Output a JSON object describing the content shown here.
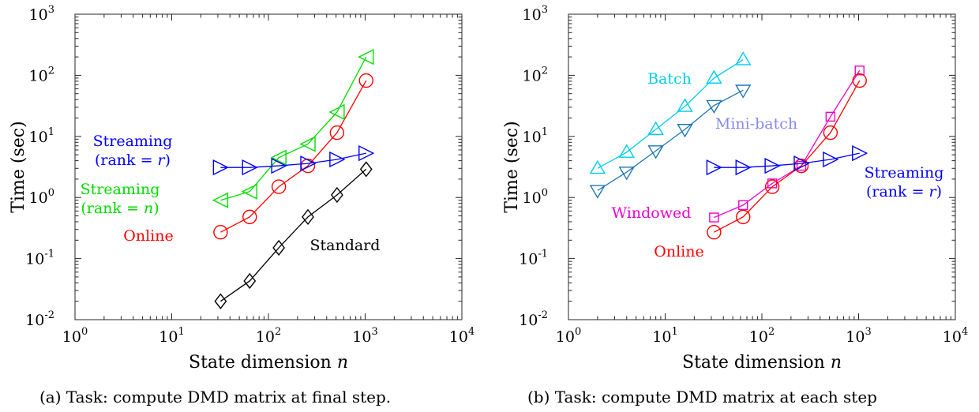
{
  "chart_data": [
    {
      "type": "line",
      "caption": "(a) Task: compute DMD matrix at final step.",
      "xlabel": "State dimension n",
      "ylabel": "Time (sec)",
      "xscale": "log",
      "yscale": "log",
      "xlim": [
        1,
        10000
      ],
      "ylim": [
        0.01,
        1000
      ],
      "xticks": [
        {
          "base": "10",
          "exp": "0"
        },
        {
          "base": "10",
          "exp": "1"
        },
        {
          "base": "10",
          "exp": "2"
        },
        {
          "base": "10",
          "exp": "3"
        },
        {
          "base": "10",
          "exp": "4"
        }
      ],
      "yticks": [
        {
          "base": "10",
          "exp": "-2"
        },
        {
          "base": "10",
          "exp": "-1"
        },
        {
          "base": "10",
          "exp": "0"
        },
        {
          "base": "10",
          "exp": "1"
        },
        {
          "base": "10",
          "exp": "2"
        },
        {
          "base": "10",
          "exp": "3"
        }
      ],
      "series": [
        {
          "name": "Standard",
          "color": "#000000",
          "marker": "diamond",
          "x": [
            32,
            64,
            128,
            256,
            512,
            1024
          ],
          "y": [
            0.02,
            0.043,
            0.15,
            0.48,
            1.1,
            2.9
          ]
        },
        {
          "name": "Online",
          "color": "#ff0000",
          "marker": "circle",
          "x": [
            32,
            64,
            128,
            256,
            512,
            1024
          ],
          "y": [
            0.27,
            0.48,
            1.5,
            3.3,
            11.5,
            82
          ]
        },
        {
          "name": "Streaming (rank = n)",
          "color": "#00dd00",
          "marker": "triangle-left",
          "x": [
            32,
            64,
            128,
            256,
            512,
            1024
          ],
          "y": [
            0.9,
            1.25,
            4.5,
            7.5,
            25,
            200
          ]
        },
        {
          "name": "Streaming (rank = r)",
          "color": "#0000ff",
          "marker": "triangle-right",
          "x": [
            32,
            64,
            128,
            256,
            512,
            1024
          ],
          "y": [
            3.1,
            3.1,
            3.3,
            3.6,
            4.2,
            5.3
          ]
        }
      ],
      "annotations": [
        {
          "lines": [
            "Streaming",
            "(rank = r)"
          ],
          "color": "#0000ff"
        },
        {
          "lines": [
            "Streaming",
            "(rank = n)"
          ],
          "color": "#00dd00"
        },
        {
          "lines": [
            "Online"
          ],
          "color": "#ff0000"
        },
        {
          "lines": [
            "Standard"
          ],
          "color": "#000000"
        }
      ]
    },
    {
      "type": "line",
      "caption": "(b) Task: compute DMD matrix at each step",
      "xlabel": "State dimension n",
      "ylabel": "Time (sec)",
      "xscale": "log",
      "yscale": "log",
      "xlim": [
        1,
        10000
      ],
      "ylim": [
        0.01,
        1000
      ],
      "xticks": [
        {
          "base": "10",
          "exp": "0"
        },
        {
          "base": "10",
          "exp": "1"
        },
        {
          "base": "10",
          "exp": "2"
        },
        {
          "base": "10",
          "exp": "3"
        },
        {
          "base": "10",
          "exp": "4"
        }
      ],
      "yticks": [
        {
          "base": "10",
          "exp": "-2"
        },
        {
          "base": "10",
          "exp": "-1"
        },
        {
          "base": "10",
          "exp": "0"
        },
        {
          "base": "10",
          "exp": "1"
        },
        {
          "base": "10",
          "exp": "2"
        },
        {
          "base": "10",
          "exp": "3"
        }
      ],
      "series": [
        {
          "name": "Batch",
          "color": "#00ccee",
          "marker": "triangle-up",
          "x": [
            2,
            4,
            8,
            16,
            32,
            64
          ],
          "y": [
            3.0,
            5.5,
            13,
            31,
            90,
            180
          ]
        },
        {
          "name": "Mini-batch",
          "color": "#1f77b4",
          "marker": "triangle-down",
          "x": [
            2,
            4,
            8,
            16,
            32,
            64
          ],
          "y": [
            1.3,
            2.6,
            5.8,
            13,
            32,
            57
          ]
        },
        {
          "name": "Windowed",
          "color": "#ee00cc",
          "marker": "square",
          "x": [
            32,
            64,
            128,
            256,
            512,
            1024
          ],
          "y": [
            0.47,
            0.75,
            1.7,
            3.3,
            21,
            120
          ]
        },
        {
          "name": "Online",
          "color": "#ff0000",
          "marker": "circle",
          "x": [
            32,
            64,
            128,
            256,
            512,
            1024
          ],
          "y": [
            0.27,
            0.48,
            1.5,
            3.3,
            11.5,
            82
          ]
        },
        {
          "name": "Streaming (rank = r)",
          "color": "#0000ff",
          "marker": "triangle-right",
          "x": [
            32,
            64,
            128,
            256,
            512,
            1024
          ],
          "y": [
            3.1,
            3.1,
            3.3,
            3.6,
            4.2,
            5.3
          ]
        }
      ],
      "annotations": [
        {
          "lines": [
            "Batch"
          ],
          "color": "#00ccee"
        },
        {
          "lines": [
            "Mini-batch"
          ],
          "color": "#8888ee"
        },
        {
          "lines": [
            "Windowed"
          ],
          "color": "#ee00cc"
        },
        {
          "lines": [
            "Online"
          ],
          "color": "#ff0000"
        },
        {
          "lines": [
            "Streaming",
            "(rank = r)"
          ],
          "color": "#0000ff"
        }
      ]
    }
  ]
}
